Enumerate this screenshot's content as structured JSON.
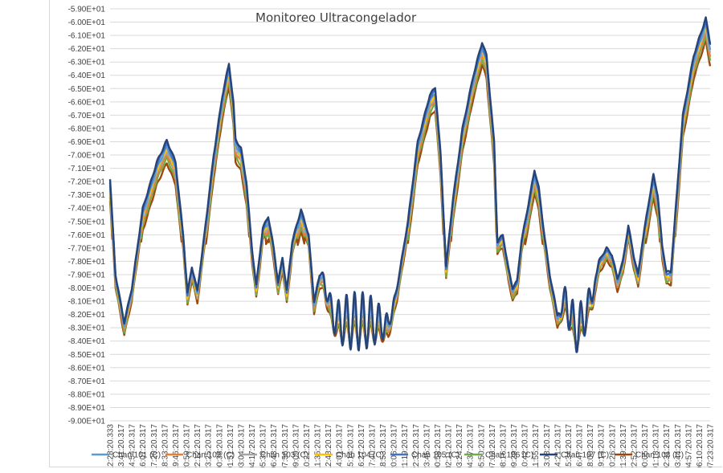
{
  "chart_data": {
    "type": "line",
    "title": "Monitoreo Ultracongelador",
    "xlabel": "",
    "ylabel": "",
    "ylim": [
      -90,
      -59
    ],
    "y_ticks": [
      "-5.90E+01",
      "-6.00E+01",
      "-6.10E+01",
      "-6.20E+01",
      "-6.30E+01",
      "-6.40E+01",
      "-6.50E+01",
      "-6.60E+01",
      "-6.70E+01",
      "-6.80E+01",
      "-6.90E+01",
      "-7.00E+01",
      "-7.10E+01",
      "-7.20E+01",
      "-7.30E+01",
      "-7.40E+01",
      "-7.50E+01",
      "-7.60E+01",
      "-7.70E+01",
      "-7.80E+01",
      "-7.90E+01",
      "-8.00E+01",
      "-8.10E+01",
      "-8.20E+01",
      "-8.30E+01",
      "-8.40E+01",
      "-8.50E+01",
      "-8.60E+01",
      "-8.70E+01",
      "-8.80E+01",
      "-8.90E+01",
      "-9.00E+01"
    ],
    "categories": [
      "12:28:20.333",
      "13:41:20.317",
      "14:54:20.317",
      "16:07:20.317",
      "17:20:20.317",
      "18:33:20.317",
      "19:46:20.317",
      "20:59:20.317",
      "22:12:20.317",
      "23:25:20.317",
      "00:38:20.317",
      "01:51:20.317",
      "03:04:20.317",
      "04:17:20.317",
      "05:30:20.317",
      "06:43:20.317",
      "07:56:20.317",
      "09:09:20.317",
      "10:22:20.317",
      "11:35:20.317",
      "12:48:20.317",
      "14:01:20.317",
      "15:14:20.317",
      "16:27:20.317",
      "17:40:20.317",
      "18:53:20.317",
      "20:06:20.317",
      "21:19:20.317",
      "22:32:20.317",
      "23:45:20.317",
      "00:58:20.317",
      "02:11:20.317",
      "03:24:20.317",
      "04:37:20.317",
      "05:50:20.317",
      "07:03:20.317",
      "08:16:20.317",
      "09:29:20.317",
      "10:42:20.317",
      "11:55:20.317",
      "13:08:20.317",
      "14:21:20.317",
      "15:34:20.317",
      "16:47:20.317",
      "18:00:20.317",
      "19:13:20.317",
      "20:26:20.317",
      "21:39:20.317",
      "22:52:20.317",
      "00:05:20.317",
      "01:18:20.317",
      "02:31:20.317",
      "03:44:20.317",
      "04:57:20.317",
      "06:10:20.317",
      "07:23:20.317"
    ],
    "base_profile": [
      [
        0,
        -71.8
      ],
      [
        0.5,
        -79
      ],
      [
        1.3,
        -82.6
      ],
      [
        2,
        -80
      ],
      [
        3,
        -74
      ],
      [
        4.3,
        -70.5
      ],
      [
        5.2,
        -68.9
      ],
      [
        6,
        -70.5
      ],
      [
        6.7,
        -76
      ],
      [
        7.1,
        -80.4
      ],
      [
        7.5,
        -78.4
      ],
      [
        8,
        -80.2
      ],
      [
        8.5,
        -77
      ],
      [
        9.5,
        -70
      ],
      [
        10.3,
        -65.5
      ],
      [
        10.9,
        -63.1
      ],
      [
        11.3,
        -66
      ],
      [
        11.5,
        -68.8
      ],
      [
        12,
        -69.5
      ],
      [
        12.5,
        -72
      ],
      [
        13,
        -77
      ],
      [
        13.4,
        -79.8
      ],
      [
        14,
        -75.5
      ],
      [
        14.5,
        -74.6
      ],
      [
        15,
        -77
      ],
      [
        15.4,
        -79.6
      ],
      [
        15.8,
        -77.7
      ],
      [
        16.2,
        -80.2
      ],
      [
        16.7,
        -76.5
      ],
      [
        17.5,
        -74.1
      ],
      [
        18.2,
        -76
      ],
      [
        18.7,
        -81
      ],
      [
        19.2,
        -79
      ],
      [
        19.6,
        -79.3
      ],
      [
        20.2,
        -81.5
      ],
      [
        20.8,
        -82.5
      ],
      [
        22.5,
        -82.5
      ],
      [
        24,
        -82.5
      ],
      [
        25.5,
        -82.8
      ],
      [
        26.3,
        -80
      ],
      [
        27.3,
        -75
      ],
      [
        28.2,
        -69
      ],
      [
        29.3,
        -65.5
      ],
      [
        29.8,
        -64.9
      ],
      [
        30.3,
        -70
      ],
      [
        30.8,
        -78.4
      ],
      [
        31.4,
        -73.5
      ],
      [
        32.3,
        -68
      ],
      [
        33.3,
        -64
      ],
      [
        34.1,
        -61.5
      ],
      [
        34.5,
        -62.5
      ],
      [
        35.2,
        -69
      ],
      [
        35.5,
        -76.5
      ],
      [
        36,
        -76
      ],
      [
        36.5,
        -78.5
      ],
      [
        36.9,
        -80
      ],
      [
        37.3,
        -79.5
      ],
      [
        37.7,
        -76.5
      ],
      [
        38.5,
        -73
      ],
      [
        38.9,
        -71.1
      ],
      [
        39.3,
        -72.5
      ],
      [
        39.8,
        -76
      ],
      [
        40.3,
        -79
      ],
      [
        41,
        -82
      ],
      [
        41.8,
        -80.8
      ],
      [
        42.5,
        -83
      ],
      [
        43.2,
        -82.8
      ],
      [
        43.7,
        -81.5
      ],
      [
        44.2,
        -80.5
      ],
      [
        44.8,
        -78
      ],
      [
        45.5,
        -77
      ],
      [
        46,
        -77.5
      ],
      [
        46.5,
        -79.3
      ],
      [
        47,
        -78
      ],
      [
        47.5,
        -75.3
      ],
      [
        48,
        -77.6
      ],
      [
        48.4,
        -79
      ],
      [
        48.8,
        -76.5
      ],
      [
        49.4,
        -73.4
      ],
      [
        49.8,
        -71.5
      ],
      [
        50.2,
        -73
      ],
      [
        50.6,
        -76.8
      ],
      [
        51,
        -78.8
      ],
      [
        51.4,
        -78.8
      ],
      [
        51.8,
        -74.5
      ],
      [
        52.5,
        -67
      ],
      [
        53.5,
        -62.5
      ],
      [
        54,
        -61.2
      ],
      [
        54.6,
        -59.7
      ],
      [
        55.2,
        -62.5
      ],
      [
        55.7,
        -72.5
      ],
      [
        55.85,
        -75
      ]
    ],
    "series": [
      {
        "name": "Chan 101 (C)",
        "color": "#5b9bd5",
        "offset": 0.45
      },
      {
        "name": "Chan 102 (C)",
        "color": "#ed7d31",
        "offset": 1.0
      },
      {
        "name": "Chan 103 (C)",
        "color": "#a5a5a5",
        "offset": 0.8
      },
      {
        "name": "Chan 104 (C)",
        "color": "#ffc000",
        "offset": 0.6
      },
      {
        "name": "Chan 105 (C)",
        "color": "#4472c4",
        "offset": 0.2
      },
      {
        "name": "Chan 106 (C)",
        "color": "#70ad47",
        "offset": 1.3
      },
      {
        "name": "Chan 107 (C)",
        "color": "#264478",
        "offset": 0.0
      },
      {
        "name": "Chan 108 (C)",
        "color": "#9e480e",
        "offset": 1.7
      }
    ],
    "oscillation_windows": [
      [
        19.0,
        26.2,
        2.2
      ],
      [
        41.0,
        44.6,
        2.0
      ]
    ],
    "grid": true,
    "legend_position": "bottom"
  }
}
